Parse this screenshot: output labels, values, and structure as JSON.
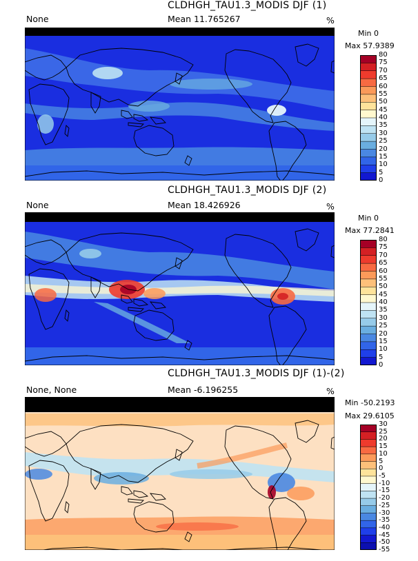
{
  "panels": [
    {
      "title": "CLDHGH_TAU1.3_MODIS DJF (1)",
      "left_label": "None",
      "mean_label": "Mean 11.765267",
      "units": "%",
      "min_label": "Min 0",
      "max_label": "Max 57.9389",
      "colorbar": {
        "ticks": [
          "80",
          "75",
          "70",
          "65",
          "60",
          "55",
          "50",
          "45",
          "40",
          "35",
          "30",
          "25",
          "20",
          "15",
          "10",
          "5",
          "0"
        ],
        "colors": [
          "#a50026",
          "#d42024",
          "#ee3b2d",
          "#f86a42",
          "#fb9a5a",
          "#fdc07a",
          "#fee39b",
          "#fff8cf",
          "#e5f5fa",
          "#bfe3f3",
          "#96cbe9",
          "#6aaee0",
          "#4a88e2",
          "#3165e8",
          "#1f3fea",
          "#1218d0"
        ]
      }
    },
    {
      "title": "CLDHGH_TAU1.3_MODIS DJF (2)",
      "left_label": "None",
      "mean_label": "Mean 18.426926",
      "units": "%",
      "min_label": "Min 0",
      "max_label": "Max 77.2841",
      "colorbar": {
        "ticks": [
          "80",
          "75",
          "70",
          "65",
          "60",
          "55",
          "50",
          "45",
          "40",
          "35",
          "30",
          "25",
          "20",
          "15",
          "10",
          "5",
          "0"
        ],
        "colors": [
          "#a50026",
          "#d42024",
          "#ee3b2d",
          "#f86a42",
          "#fb9a5a",
          "#fdc07a",
          "#fee39b",
          "#fff8cf",
          "#e5f5fa",
          "#bfe3f3",
          "#96cbe9",
          "#6aaee0",
          "#4a88e2",
          "#3165e8",
          "#1f3fea",
          "#1218d0"
        ]
      }
    },
    {
      "title": "CLDHGH_TAU1.3_MODIS DJF (1)-(2)",
      "left_label": "None, None",
      "mean_label": "Mean -6.196255",
      "units": "%",
      "min_label": "Min -50.2193",
      "max_label": "Max 29.6105",
      "colorbar": {
        "ticks": [
          "30",
          "25",
          "20",
          "15",
          "10",
          "5",
          "0",
          "-5",
          "-10",
          "-15",
          "-20",
          "-25",
          "-30",
          "-35",
          "-40",
          "-45",
          "-50",
          "-55"
        ],
        "colors": [
          "#a50026",
          "#d42024",
          "#ee3b2d",
          "#f86a42",
          "#fb9a5a",
          "#fdc07a",
          "#fee39b",
          "#fff8cf",
          "#e5f5fa",
          "#bfe3f3",
          "#96cbe9",
          "#6aaee0",
          "#4a88e2",
          "#3165e8",
          "#1f3fea",
          "#1218d0",
          "#0c10b0"
        ]
      }
    }
  ]
}
